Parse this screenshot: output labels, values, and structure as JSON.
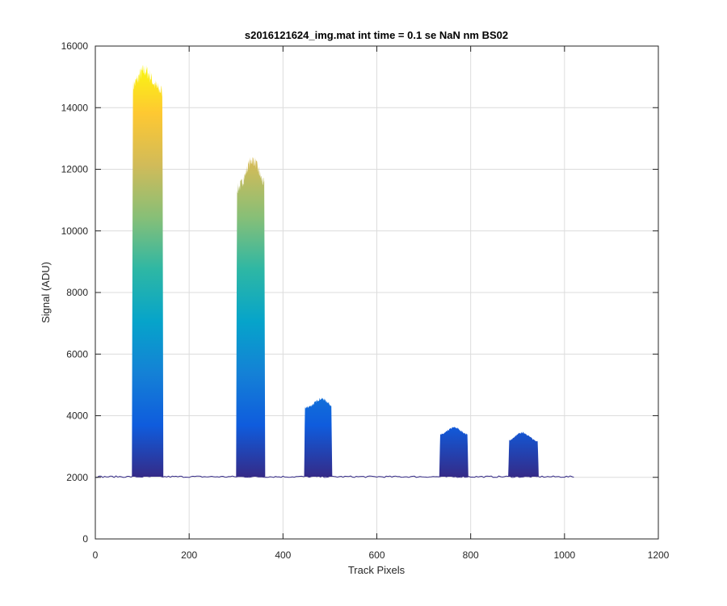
{
  "chart_data": {
    "type": "area",
    "title": "s2016121624_img.mat int time = 0.1 se  NaN nm BS02",
    "xlabel": "Track Pixels",
    "ylabel": "Signal (ADU)",
    "xlim": [
      0,
      1200
    ],
    "ylim": [
      0,
      16000
    ],
    "xticks": [
      0,
      200,
      400,
      600,
      800,
      1000,
      1200
    ],
    "yticks": [
      0,
      2000,
      4000,
      6000,
      8000,
      10000,
      12000,
      14000,
      16000
    ],
    "xtick_labels": [
      "0",
      "200",
      "400",
      "600",
      "800",
      "1000",
      "1200"
    ],
    "ytick_labels": [
      "0",
      "2000",
      "4000",
      "6000",
      "8000",
      "10000",
      "12000",
      "14000",
      "16000"
    ],
    "grid": true,
    "x_range_data": [
      0,
      1023
    ],
    "baseline": 2020,
    "colormap": [
      "#352a87",
      "#0f5cdd",
      "#1481d6",
      "#06a4ca",
      "#2eb7a4",
      "#87bf77",
      "#d1bb59",
      "#fec832",
      "#f9fb0e"
    ],
    "color_range": [
      2000,
      15500
    ],
    "peaks": [
      {
        "x_start": 78,
        "x_end": 145,
        "x_peak": 105,
        "peak_value": 15200,
        "edge_value": 14500
      },
      {
        "x_start": 300,
        "x_end": 362,
        "x_peak": 335,
        "peak_value": 12300,
        "edge_value": 11300
      },
      {
        "x_start": 445,
        "x_end": 505,
        "x_peak": 482,
        "peak_value": 4550,
        "edge_value": 4250
      },
      {
        "x_start": 733,
        "x_end": 795,
        "x_peak": 765,
        "peak_value": 3620,
        "edge_value": 3350
      },
      {
        "x_start": 880,
        "x_end": 945,
        "x_peak": 910,
        "peak_value": 3450,
        "edge_value": 3150
      }
    ],
    "baseline_line_color": "#352a87"
  }
}
